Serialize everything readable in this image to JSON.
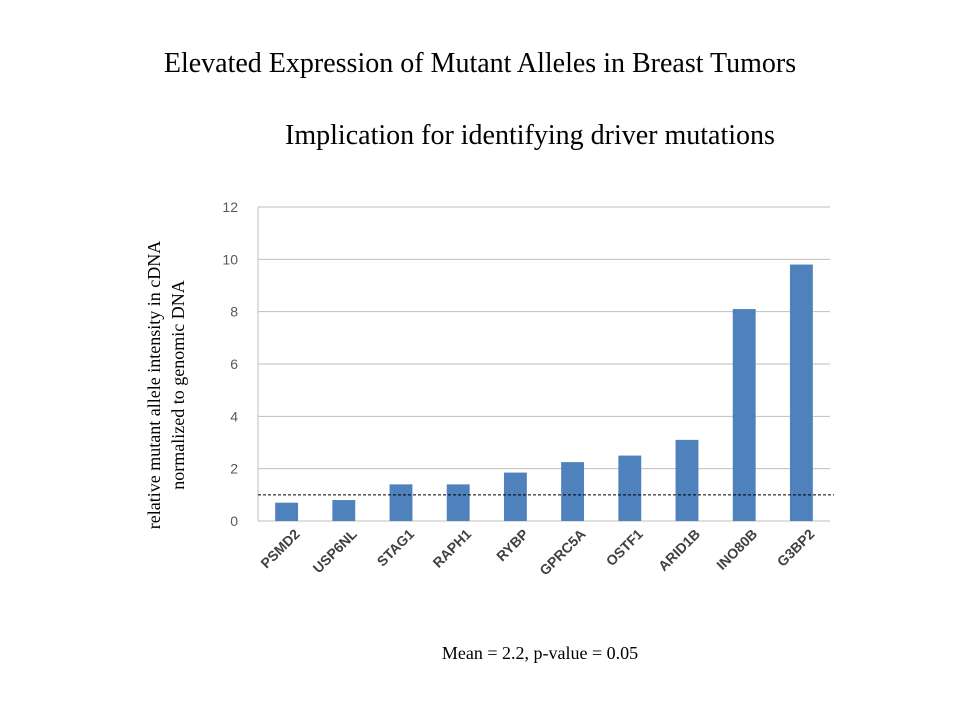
{
  "header": {
    "title": "Elevated Expression of Mutant Alleles in Breast Tumors",
    "subtitle": "Implication for identifying driver mutations"
  },
  "footer": {
    "stats": "Mean = 2.2, p-value = 0.05"
  },
  "chart_data": {
    "type": "bar",
    "title": "",
    "ylabel_lines": [
      "relative mutant allele intensity in cDNA",
      "normalized to genomic DNA"
    ],
    "xlabel": "",
    "categories": [
      "PSMD2",
      "USP6NL",
      "STAG1",
      "RAPH1",
      "RYBP",
      "GPRC5A",
      "OSTF1",
      "ARID1B",
      "INO80B",
      "G3BP2"
    ],
    "values": [
      0.7,
      0.8,
      1.4,
      1.4,
      1.85,
      2.25,
      2.5,
      3.1,
      8.1,
      9.8
    ],
    "ylim": [
      0,
      12
    ],
    "yticks": [
      0,
      2,
      4,
      6,
      8,
      10,
      12
    ],
    "grid": true,
    "reference_line": 1,
    "bar_color": "#4F81BD",
    "grid_color": "#BFBFBF"
  }
}
